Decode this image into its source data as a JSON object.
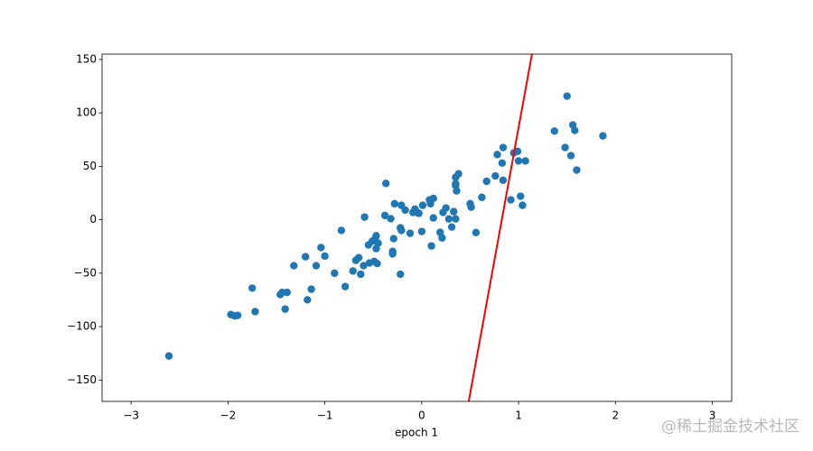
{
  "chart_data": {
    "type": "scatter",
    "xlabel": "epoch 1",
    "xlim": [
      -3.3,
      3.2
    ],
    "ylim": [
      -170,
      155
    ],
    "xticks": [
      {
        "value": -3,
        "label": "−3"
      },
      {
        "value": -2,
        "label": "−2"
      },
      {
        "value": -1,
        "label": "−1"
      },
      0,
      1,
      2,
      3
    ],
    "yticks": [
      {
        "value": -150,
        "label": "−150"
      },
      {
        "value": -100,
        "label": "−100"
      },
      {
        "value": -50,
        "label": "−50"
      },
      0,
      50,
      100,
      150
    ],
    "series": [
      {
        "type": "scatter",
        "color": "#1f77b4",
        "x": [
          -2.61,
          -1.97,
          -1.93,
          -1.9,
          -1.75,
          -1.72,
          -1.46,
          -1.44,
          -1.39,
          -1.41,
          -1.32,
          -1.2,
          -1.18,
          -1.14,
          -1.09,
          -1.04,
          -1.0,
          -0.9,
          -0.83,
          -0.79,
          -0.71,
          -0.68,
          -0.65,
          -0.63,
          -0.6,
          -0.59,
          -0.55,
          -0.54,
          -0.51,
          -0.49,
          -0.48,
          -0.47,
          -0.46,
          -0.47,
          -0.45,
          -0.37,
          -0.38,
          -0.32,
          -0.3,
          -0.3,
          -0.29,
          -0.28,
          -0.22,
          -0.22,
          -0.21,
          -0.21,
          -0.17,
          -0.12,
          -0.09,
          -0.07,
          -0.05,
          -0.03,
          0.01,
          0.0,
          0.08,
          0.09,
          0.12,
          0.1,
          0.12,
          0.19,
          0.21,
          0.22,
          0.25,
          0.28,
          0.31,
          0.33,
          0.35,
          0.35,
          0.36,
          0.35,
          0.38,
          0.35,
          0.5,
          0.51,
          0.56,
          0.62,
          0.67,
          0.76,
          0.78,
          0.83,
          0.84,
          0.84,
          0.92,
          0.95,
          0.99,
          1.0,
          1.02,
          1.04,
          1.07,
          1.37,
          1.48,
          1.5,
          1.54,
          1.56,
          1.58,
          1.6,
          1.87
        ],
        "y": [
          -127.5,
          -88.7,
          -90,
          -89.5,
          -64,
          -86,
          -70,
          -68,
          -68,
          -83.6,
          -43,
          -34.6,
          -75,
          -65,
          -43,
          -26,
          -34,
          -50,
          -10,
          -62.5,
          -48,
          -38,
          -35.5,
          -51,
          -43,
          2.5,
          -23.6,
          -40.5,
          -20,
          -39,
          -17.7,
          -27,
          -41,
          -15,
          -22,
          34,
          4,
          1,
          -29.6,
          -32,
          -17.7,
          15,
          -51,
          -7.6,
          -10,
          13.5,
          9,
          -12.7,
          6.8,
          10,
          6.8,
          6,
          13.5,
          -11,
          18.6,
          15,
          20,
          -24.5,
          1.7,
          -11.8,
          -17,
          6.8,
          11,
          0.8,
          -6.8,
          7.6,
          39.7,
          32,
          27,
          33.8,
          43,
          0.8,
          15,
          11.8,
          -12,
          21,
          36,
          41,
          61,
          53,
          37,
          67.6,
          18.6,
          62.5,
          64,
          55,
          22,
          13.5,
          55,
          83,
          67.6,
          115.7,
          60,
          88.7,
          83.6,
          46.5,
          78.5
        ]
      },
      {
        "type": "line",
        "color": "#ff0000",
        "x": [
          0.485,
          1.138
        ],
        "y": [
          -170,
          155
        ]
      }
    ]
  },
  "watermark": "@稀土掘金技术社区"
}
